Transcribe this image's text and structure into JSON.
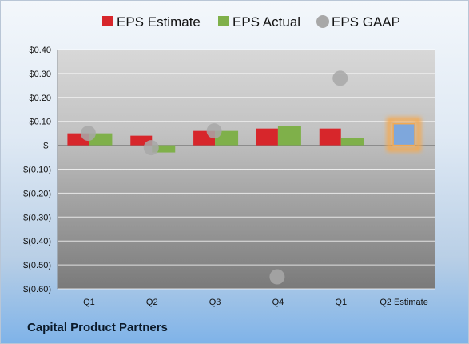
{
  "company": "Capital Product Partners",
  "chart_data": {
    "type": "bar",
    "categories": [
      "Q1",
      "Q2",
      "Q3",
      "Q4",
      "Q1",
      "Q2 Estimate"
    ],
    "series": [
      {
        "name": "EPS Estimate",
        "values": [
          0.05,
          0.04,
          0.06,
          0.07,
          0.07,
          null
        ],
        "color": "#d7262b"
      },
      {
        "name": "EPS Actual",
        "values": [
          0.05,
          -0.03,
          0.06,
          0.08,
          0.03,
          0.09
        ],
        "color": "#7fb04a"
      },
      {
        "name": "EPS GAAP",
        "type": "scatter",
        "values": [
          0.05,
          -0.01,
          0.06,
          -0.55,
          0.28,
          null
        ],
        "color": "#a8a8a8"
      }
    ],
    "highlight": {
      "category": "Q2 Estimate",
      "value": 0.09,
      "color": "#7ea7dc",
      "glow": "#f4a950"
    },
    "yticks": [
      "$0.40",
      "$0.30",
      "$0.20",
      "$0.10",
      "$-",
      "$(0.10)",
      "$(0.20)",
      "$(0.30)",
      "$(0.40)",
      "$(0.50)",
      "$(0.60)"
    ],
    "ylim": [
      -0.6,
      0.4
    ],
    "grid": true,
    "legend_position": "top"
  }
}
